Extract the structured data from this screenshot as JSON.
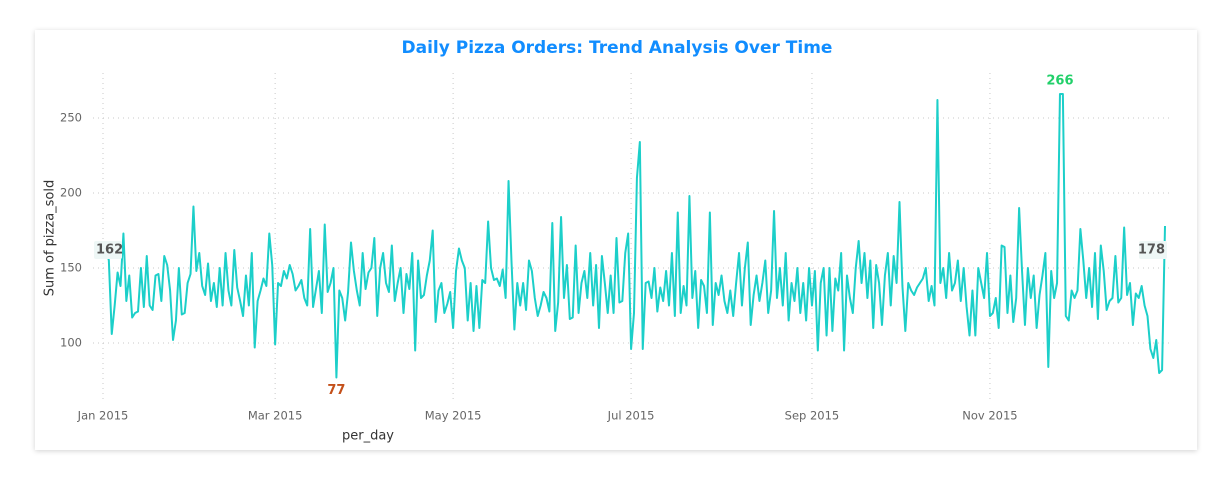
{
  "chart_data": {
    "type": "line",
    "title": "Daily Pizza Orders: Trend Analysis Over Time",
    "x_label": "per_day",
    "y_label": "Sum of pizza_sold",
    "color": "#1ccfc9",
    "min_label_color": "#c4501a",
    "max_label_color": "#22d06a",
    "label_color": "#555555",
    "grid": true,
    "xlim": [
      1,
      365
    ],
    "xticks": [
      {
        "value": 1,
        "label": "Jan 2015"
      },
      {
        "value": 60,
        "label": "Mar 2015"
      },
      {
        "value": 121,
        "label": "May 2015"
      },
      {
        "value": 182,
        "label": "Jul 2015"
      },
      {
        "value": 244,
        "label": "Sep 2015"
      },
      {
        "value": 305,
        "label": "Nov 2015"
      }
    ],
    "ylim": [
      62,
      280
    ],
    "yticks": [
      100,
      150,
      200,
      250
    ],
    "x": [
      1,
      2,
      3,
      4,
      5,
      6,
      7,
      8,
      9,
      10,
      11,
      12,
      13,
      14,
      15,
      16,
      17,
      18,
      19,
      20,
      21,
      22,
      23,
      24,
      25,
      26,
      27,
      28,
      29,
      30,
      31,
      32,
      33,
      34,
      35,
      36,
      37,
      38,
      39,
      40,
      41,
      42,
      43,
      44,
      45,
      46,
      47,
      48,
      49,
      50,
      51,
      52,
      53,
      54,
      55,
      56,
      57,
      58,
      59,
      60,
      61,
      62,
      63,
      64,
      65,
      66,
      67,
      68,
      69,
      70,
      71,
      72,
      73,
      74,
      75,
      76,
      77,
      78,
      79,
      80,
      81,
      82,
      83,
      84,
      85,
      86,
      87,
      88,
      89,
      90,
      91,
      92,
      93,
      94,
      95,
      96,
      97,
      98,
      99,
      100,
      101,
      102,
      103,
      104,
      105,
      106,
      107,
      108,
      109,
      110,
      111,
      112,
      113,
      114,
      115,
      116,
      117,
      118,
      119,
      120,
      121,
      122,
      123,
      124,
      125,
      126,
      127,
      128,
      129,
      130,
      131,
      132,
      133,
      134,
      135,
      136,
      137,
      138,
      139,
      140,
      141,
      142,
      143,
      144,
      145,
      146,
      147,
      148,
      149,
      150,
      151,
      152,
      153,
      154,
      155,
      156,
      157,
      158,
      159,
      160,
      161,
      162,
      163,
      164,
      165,
      166,
      167,
      168,
      169,
      170,
      171,
      172,
      173,
      174,
      175,
      176,
      177,
      178,
      179,
      180,
      181,
      182,
      183,
      184,
      185,
      186,
      187,
      188,
      189,
      190,
      191,
      192,
      193,
      194,
      195,
      196,
      197,
      198,
      199,
      200,
      201,
      202,
      203,
      204,
      205,
      206,
      207,
      208,
      209,
      210,
      211,
      212,
      213,
      214,
      215,
      216,
      217,
      218,
      219,
      220,
      221,
      222,
      223,
      224,
      225,
      226,
      227,
      228,
      229,
      230,
      231,
      232,
      233,
      234,
      235,
      236,
      237,
      238,
      239,
      240,
      241,
      242,
      243,
      244,
      245,
      246,
      247,
      248,
      249,
      250,
      251,
      252,
      253,
      254,
      255,
      256,
      257,
      258,
      259,
      260,
      261,
      262,
      263,
      264,
      265,
      266,
      267,
      268,
      269,
      270,
      271,
      272,
      273,
      274,
      275,
      276,
      277,
      278,
      279,
      280,
      281,
      282,
      283,
      284,
      285,
      286,
      287,
      288,
      289,
      290,
      291,
      292,
      293,
      294,
      295,
      296,
      297,
      298,
      299,
      300,
      301,
      302,
      303,
      304,
      305,
      306,
      307,
      308,
      309,
      310,
      311,
      312,
      313,
      314,
      315,
      316,
      317,
      318,
      319,
      320,
      321,
      322,
      323,
      324,
      325,
      326,
      327,
      328,
      329,
      330,
      331,
      332,
      333,
      334,
      335,
      336,
      337,
      338,
      339,
      340,
      341,
      342,
      343,
      344,
      345,
      346,
      347,
      348,
      349,
      350,
      351,
      352,
      353,
      354,
      355,
      356,
      357,
      358,
      359,
      360,
      361,
      362,
      363,
      364,
      365
    ],
    "values": [
      162,
      165,
      155,
      106,
      125,
      147,
      138,
      173,
      128,
      145,
      117,
      120,
      121,
      150,
      124,
      158,
      125,
      122,
      145,
      146,
      128,
      158,
      152,
      135,
      102,
      115,
      150,
      119,
      120,
      140,
      146,
      191,
      148,
      160,
      138,
      132,
      153,
      128,
      140,
      124,
      150,
      125,
      160,
      135,
      125,
      162,
      137,
      128,
      118,
      145,
      125,
      160,
      97,
      128,
      135,
      143,
      138,
      173,
      152,
      99,
      140,
      138,
      148,
      143,
      152,
      146,
      135,
      138,
      142,
      130,
      125,
      176,
      124,
      136,
      148,
      120,
      179,
      134,
      140,
      150,
      77,
      135,
      130,
      115,
      134,
      167,
      148,
      135,
      125,
      160,
      136,
      147,
      150,
      170,
      118,
      150,
      160,
      140,
      134,
      165,
      128,
      140,
      150,
      120,
      146,
      136,
      160,
      95,
      155,
      130,
      132,
      145,
      155,
      175,
      114,
      135,
      140,
      120,
      126,
      134,
      110,
      148,
      163,
      155,
      150,
      115,
      140,
      108,
      138,
      110,
      142,
      140,
      181,
      150,
      142,
      143,
      138,
      149,
      130,
      208,
      155,
      109,
      140,
      125,
      140,
      122,
      155,
      148,
      130,
      118,
      125,
      134,
      130,
      121,
      180,
      108,
      127,
      184,
      130,
      152,
      116,
      117,
      165,
      120,
      140,
      148,
      130,
      160,
      125,
      152,
      110,
      158,
      140,
      120,
      145,
      120,
      170,
      127,
      128,
      160,
      173,
      96,
      120,
      210,
      234,
      96,
      140,
      141,
      130,
      150,
      121,
      137,
      128,
      148,
      125,
      160,
      118,
      187,
      120,
      138,
      125,
      198,
      130,
      148,
      110,
      142,
      138,
      120,
      187,
      112,
      140,
      132,
      145,
      128,
      120,
      135,
      118,
      140,
      160,
      125,
      150,
      167,
      112,
      132,
      145,
      128,
      140,
      155,
      120,
      135,
      188,
      130,
      150,
      125,
      160,
      115,
      140,
      128,
      150,
      120,
      140,
      115,
      150,
      125,
      148,
      95,
      140,
      150,
      105,
      150,
      108,
      143,
      135,
      160,
      95,
      145,
      130,
      120,
      150,
      168,
      140,
      160,
      130,
      155,
      110,
      152,
      140,
      112,
      145,
      160,
      125,
      158,
      140,
      194,
      138,
      108,
      140,
      135,
      132,
      137,
      140,
      143,
      150,
      128,
      138,
      125,
      262,
      140,
      150,
      130,
      160,
      135,
      140,
      155,
      128,
      150,
      124,
      105,
      135,
      105,
      150,
      140,
      130,
      160,
      118,
      120,
      130,
      110,
      165,
      164,
      120,
      145,
      114,
      130,
      190,
      148,
      112,
      150,
      130,
      145,
      110,
      132,
      145,
      160,
      84,
      148,
      130,
      140,
      266,
      266,
      118,
      115,
      135,
      130,
      135,
      176,
      155,
      130,
      150,
      124,
      160,
      116,
      165,
      148,
      122,
      128,
      130,
      158,
      127,
      130,
      177,
      132,
      140,
      112,
      133,
      130,
      138,
      125,
      118,
      96,
      90,
      102,
      80,
      82,
      178
    ]
  }
}
